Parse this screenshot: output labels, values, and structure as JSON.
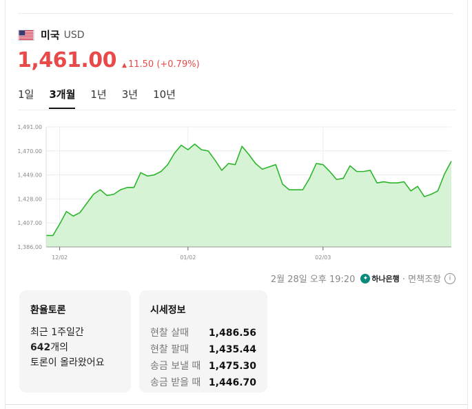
{
  "header": {
    "country": "미국",
    "currency_code": "USD"
  },
  "price": {
    "value": "1,461.00",
    "change": "11.50 (+0.79%)",
    "direction": "up"
  },
  "tabs": [
    {
      "label": "1일",
      "active": false
    },
    {
      "label": "3개월",
      "active": true
    },
    {
      "label": "1년",
      "active": false
    },
    {
      "label": "3년",
      "active": false
    },
    {
      "label": "10년",
      "active": false
    }
  ],
  "chart_data": {
    "type": "area",
    "y_ticks": [
      "1,491.00",
      "1,470.00",
      "1,449.00",
      "1,428.00",
      "1,407.00",
      "1,386.00"
    ],
    "x_ticks": [
      "12/02",
      "01/02",
      "02/03"
    ],
    "ylim": [
      1386,
      1491
    ],
    "values": [
      1396,
      1396,
      1406,
      1417,
      1413,
      1416,
      1424,
      1432,
      1436,
      1431,
      1432,
      1436,
      1438,
      1438,
      1451,
      1448,
      1449,
      1452,
      1458,
      1468,
      1475,
      1471,
      1476,
      1471,
      1470,
      1462,
      1453,
      1459,
      1458,
      1474,
      1467,
      1459,
      1454,
      1456,
      1458,
      1441,
      1436,
      1436,
      1436,
      1446,
      1459,
      1458,
      1452,
      1445,
      1446,
      1457,
      1452,
      1452,
      1453,
      1442,
      1443,
      1442,
      1442,
      1443,
      1435,
      1439,
      1430,
      1432,
      1435,
      1450,
      1461
    ],
    "line_color": "#2bb52b",
    "fill_color": "#d7f3d5",
    "grid": true
  },
  "timestamp": {
    "text": "2월 28일 오후 19:20",
    "bank": "하나은행",
    "note": "· 면책조항"
  },
  "discussion": {
    "title": "환율토론",
    "line1": "최근 1주일간",
    "count": "642",
    "line2_suffix": "개의",
    "line3": "토론이 올라왔어요"
  },
  "market_info": {
    "title": "시세정보",
    "rows": [
      {
        "label": "현찰 살때",
        "value": "1,486.56"
      },
      {
        "label": "현찰 팔때",
        "value": "1,435.44"
      },
      {
        "label": "송금 보낼 때",
        "value": "1,475.30"
      },
      {
        "label": "송금 받을 때",
        "value": "1,446.70"
      }
    ]
  }
}
